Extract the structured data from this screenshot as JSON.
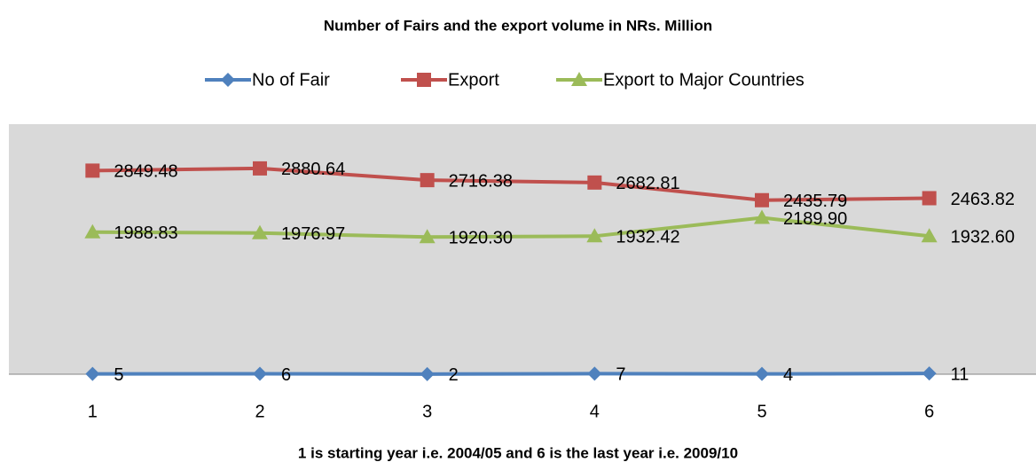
{
  "chart_data": {
    "type": "line",
    "title": "Number of Fairs and the export volume in NRs. Million",
    "x_label": "1 is starting year i.e. 2004/05 and 6 is the last year i.e. 2009/10",
    "categories": [
      "1",
      "2",
      "3",
      "4",
      "5",
      "6"
    ],
    "series": [
      {
        "name": "No of Fair",
        "color": "#4f81bd",
        "marker": "diamond",
        "values": [
          5,
          6,
          2,
          7,
          4,
          11
        ],
        "value_labels": [
          "5",
          "6",
          "2",
          "7",
          "4",
          "11"
        ]
      },
      {
        "name": "Export",
        "color": "#c0504d",
        "marker": "square",
        "values": [
          2849.48,
          2880.64,
          2716.38,
          2682.81,
          2435.79,
          2463.82
        ],
        "value_labels": [
          "2849.48",
          "2880.64",
          "2716.38",
          "2682.81",
          "2435.79",
          "2463.82"
        ]
      },
      {
        "name": "Export to Major Countries",
        "color": "#9bbb59",
        "marker": "triangle",
        "values": [
          1988.83,
          1976.97,
          1920.3,
          1932.42,
          2189.9,
          1932.6
        ],
        "value_labels": [
          "1988.83",
          "1976.97",
          "1920.30",
          "1932.42",
          "2189.90",
          "1932.60"
        ]
      }
    ],
    "ylim": [
      0,
      3500
    ],
    "legend": "top"
  }
}
